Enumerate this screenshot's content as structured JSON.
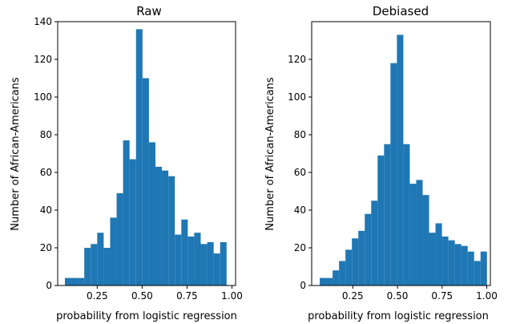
{
  "chart_data": [
    {
      "type": "bar",
      "title": "Raw",
      "xlabel": "probability from logistic regression",
      "ylabel": "Number of African-Americans",
      "xlim": [
        0.03,
        1.02
      ],
      "ylim": [
        0,
        140
      ],
      "xticks": [
        0.25,
        0.5,
        0.75,
        1.0
      ],
      "xtick_labels": [
        "0.25",
        "0.50",
        "0.75",
        "1.00"
      ],
      "yticks": [
        0,
        20,
        40,
        60,
        80,
        100,
        120,
        140
      ],
      "ytick_labels": [
        "0",
        "20",
        "40",
        "60",
        "80",
        "100",
        "120",
        "140"
      ],
      "color": "#1f77b4",
      "grid": false,
      "bins": [
        {
          "x0": 0.07,
          "x1": 0.106,
          "value": 4
        },
        {
          "x0": 0.106,
          "x1": 0.142,
          "value": 4
        },
        {
          "x0": 0.142,
          "x1": 0.178,
          "value": 4
        },
        {
          "x0": 0.178,
          "x1": 0.214,
          "value": 20
        },
        {
          "x0": 0.214,
          "x1": 0.25,
          "value": 22
        },
        {
          "x0": 0.25,
          "x1": 0.286,
          "value": 28
        },
        {
          "x0": 0.286,
          "x1": 0.322,
          "value": 20
        },
        {
          "x0": 0.322,
          "x1": 0.358,
          "value": 36
        },
        {
          "x0": 0.358,
          "x1": 0.394,
          "value": 49
        },
        {
          "x0": 0.394,
          "x1": 0.43,
          "value": 77
        },
        {
          "x0": 0.43,
          "x1": 0.466,
          "value": 67
        },
        {
          "x0": 0.466,
          "x1": 0.502,
          "value": 136
        },
        {
          "x0": 0.502,
          "x1": 0.538,
          "value": 110
        },
        {
          "x0": 0.538,
          "x1": 0.574,
          "value": 76
        },
        {
          "x0": 0.574,
          "x1": 0.61,
          "value": 63
        },
        {
          "x0": 0.61,
          "x1": 0.646,
          "value": 61
        },
        {
          "x0": 0.646,
          "x1": 0.682,
          "value": 58
        },
        {
          "x0": 0.682,
          "x1": 0.718,
          "value": 27
        },
        {
          "x0": 0.718,
          "x1": 0.754,
          "value": 35
        },
        {
          "x0": 0.754,
          "x1": 0.79,
          "value": 26
        },
        {
          "x0": 0.79,
          "x1": 0.826,
          "value": 28
        },
        {
          "x0": 0.826,
          "x1": 0.862,
          "value": 22
        },
        {
          "x0": 0.862,
          "x1": 0.898,
          "value": 23
        },
        {
          "x0": 0.898,
          "x1": 0.934,
          "value": 17
        },
        {
          "x0": 0.934,
          "x1": 0.97,
          "value": 23
        }
      ]
    },
    {
      "type": "bar",
      "title": "Debiased",
      "xlabel": "probability from logistic regression",
      "ylabel": "Number of African-Americans",
      "xlim": [
        0.02,
        1.02
      ],
      "ylim": [
        0,
        140
      ],
      "xticks": [
        0.25,
        0.5,
        0.75,
        1.0
      ],
      "xtick_labels": [
        "0.25",
        "0.50",
        "0.75",
        "1.00"
      ],
      "yticks": [
        0,
        20,
        40,
        60,
        80,
        100,
        120
      ],
      "ytick_labels": [
        "0",
        "20",
        "40",
        "60",
        "80",
        "100",
        "120"
      ],
      "color": "#1f77b4",
      "grid": false,
      "bins": [
        {
          "x0": 0.065,
          "x1": 0.101,
          "value": 4
        },
        {
          "x0": 0.101,
          "x1": 0.137,
          "value": 4
        },
        {
          "x0": 0.137,
          "x1": 0.173,
          "value": 8
        },
        {
          "x0": 0.173,
          "x1": 0.209,
          "value": 13
        },
        {
          "x0": 0.209,
          "x1": 0.245,
          "value": 19
        },
        {
          "x0": 0.245,
          "x1": 0.281,
          "value": 25
        },
        {
          "x0": 0.281,
          "x1": 0.317,
          "value": 29
        },
        {
          "x0": 0.317,
          "x1": 0.353,
          "value": 38
        },
        {
          "x0": 0.353,
          "x1": 0.389,
          "value": 45
        },
        {
          "x0": 0.389,
          "x1": 0.425,
          "value": 69
        },
        {
          "x0": 0.425,
          "x1": 0.461,
          "value": 75
        },
        {
          "x0": 0.461,
          "x1": 0.497,
          "value": 118
        },
        {
          "x0": 0.497,
          "x1": 0.533,
          "value": 133
        },
        {
          "x0": 0.533,
          "x1": 0.569,
          "value": 75
        },
        {
          "x0": 0.569,
          "x1": 0.605,
          "value": 54
        },
        {
          "x0": 0.605,
          "x1": 0.641,
          "value": 56
        },
        {
          "x0": 0.641,
          "x1": 0.677,
          "value": 48
        },
        {
          "x0": 0.677,
          "x1": 0.713,
          "value": 28
        },
        {
          "x0": 0.713,
          "x1": 0.749,
          "value": 33
        },
        {
          "x0": 0.749,
          "x1": 0.785,
          "value": 26
        },
        {
          "x0": 0.785,
          "x1": 0.821,
          "value": 24
        },
        {
          "x0": 0.821,
          "x1": 0.857,
          "value": 22
        },
        {
          "x0": 0.857,
          "x1": 0.893,
          "value": 21
        },
        {
          "x0": 0.893,
          "x1": 0.929,
          "value": 18
        },
        {
          "x0": 0.929,
          "x1": 0.965,
          "value": 13
        },
        {
          "x0": 0.965,
          "x1": 1.001,
          "value": 18
        }
      ]
    }
  ]
}
